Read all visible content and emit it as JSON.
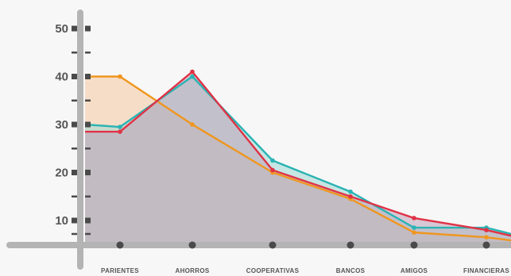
{
  "chart_data": {
    "type": "area",
    "title": "",
    "xlabel": "",
    "ylabel": "",
    "categories": [
      "PARIENTES",
      "AHORROS",
      "COOPERATIVAS",
      "BANCOS",
      "AMIGOS",
      "FINANCIERAS"
    ],
    "y_ticks": [
      10,
      20,
      30,
      40,
      50
    ],
    "ylim": [
      5,
      52
    ],
    "grid": false,
    "legend": "none",
    "series": [
      {
        "color": "#f0961e",
        "fill": "#f5c9a0",
        "values": [
          40,
          30,
          20,
          14.5,
          7.5,
          6.5
        ],
        "x_start": 0.6,
        "y_start": 40,
        "x_end": 5.85,
        "y_end": 5
      },
      {
        "color": "#2ab3b3",
        "fill": "#9fd8d4",
        "values": [
          29.5,
          40,
          22.5,
          16,
          8.5,
          8.5
        ],
        "x_start": 0.6,
        "y_start": 30,
        "x_end": 5.95,
        "y_end": 5
      },
      {
        "color": "#e03246",
        "fill": "#c0a0b8",
        "values": [
          28.5,
          41,
          20.5,
          15,
          10.5,
          8
        ],
        "x_start": 0.6,
        "y_start": 28.5,
        "x_end": 5.9,
        "y_end": 5
      }
    ],
    "axis_color": "#b4b4b4",
    "marker_color": "#4a4a4a"
  }
}
